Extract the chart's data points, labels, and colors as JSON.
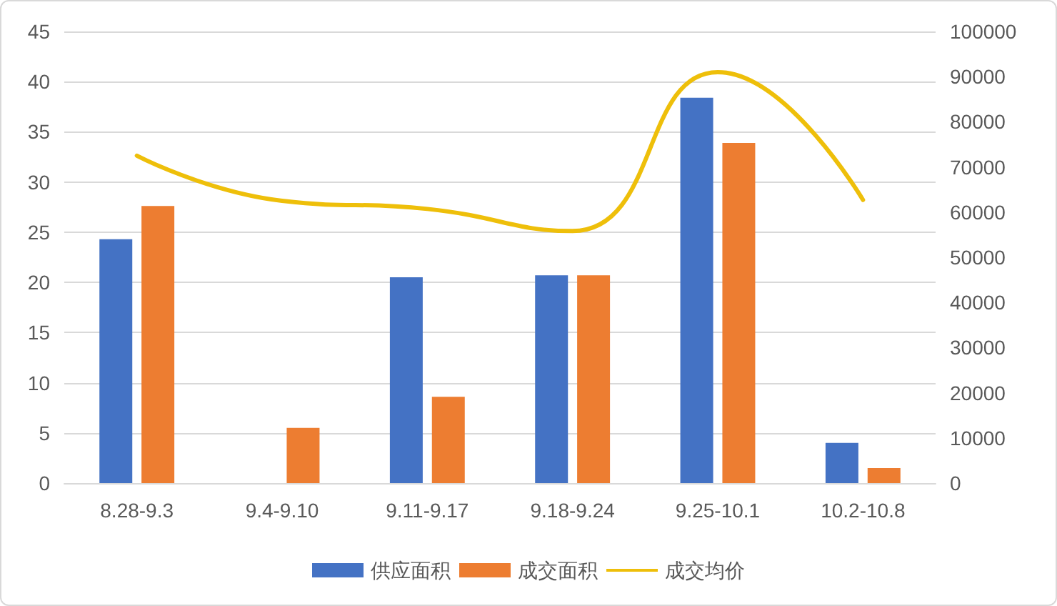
{
  "chart_data": {
    "type": "bar",
    "categories": [
      "8.28-9.3",
      "9.4-9.10",
      "9.11-9.17",
      "9.18-9.24",
      "9.25-10.1",
      "10.2-10.8"
    ],
    "series": [
      {
        "name": "供应面积",
        "color": "#4472c4",
        "values": [
          24.3,
          null,
          20.5,
          20.7,
          38.4,
          4.0
        ]
      },
      {
        "name": "成交面积",
        "color": "#ed7d31",
        "values": [
          27.6,
          5.5,
          8.6,
          20.7,
          33.9,
          1.5
        ]
      },
      {
        "name": "成交均价",
        "type": "line",
        "axis": "y2",
        "color": "#eebf0a",
        "values": [
          72500,
          62500,
          60700,
          55800,
          91000,
          62700
        ]
      }
    ],
    "ylim": [
      0,
      45
    ],
    "yticks": [
      0,
      5,
      10,
      15,
      20,
      25,
      30,
      35,
      40,
      45
    ],
    "y2lim": [
      0,
      100000
    ],
    "y2ticks": [
      0,
      10000,
      20000,
      30000,
      40000,
      50000,
      60000,
      70000,
      80000,
      90000,
      100000
    ],
    "grid": "y",
    "legend": "bottom",
    "marker": "none",
    "line_style": "solid"
  }
}
